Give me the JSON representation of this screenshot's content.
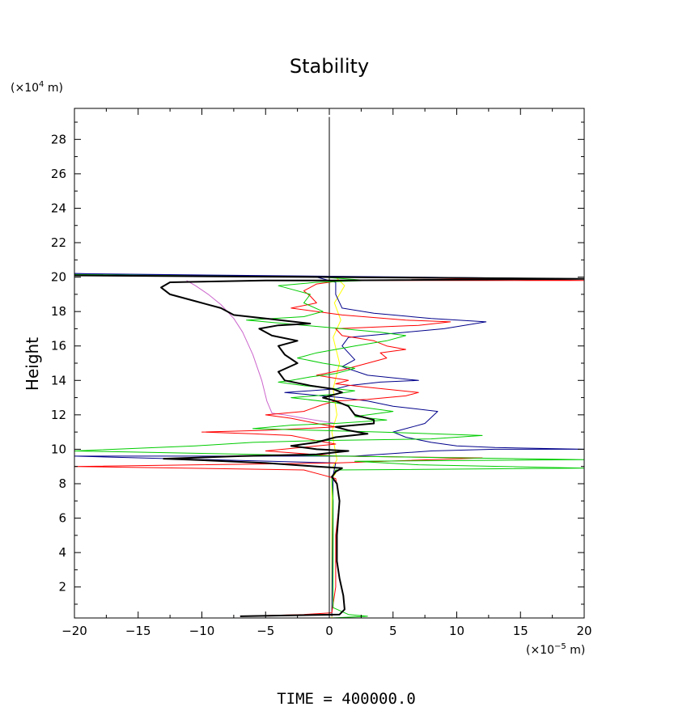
{
  "chart_data": {
    "type": "line",
    "title": "Stability",
    "ylabel": "Height",
    "y_unit_prefix": "(×10",
    "y_unit_exp": "4",
    "y_unit_suffix": " m)",
    "x_unit_prefix": "(×10",
    "x_unit_exp": "−5",
    "x_unit_suffix": " m)",
    "footer": "TIME = 400000.0",
    "xlim": [
      -20,
      20
    ],
    "ylim": [
      0.2,
      29.8
    ],
    "x_ticks": [
      -20,
      -15,
      -10,
      -5,
      0,
      5,
      10,
      15,
      20
    ],
    "x_tick_labels": [
      "−20",
      "−15",
      "−10",
      "−5",
      "0",
      "5",
      "10",
      "15",
      "20"
    ],
    "y_ticks": [
      2,
      4,
      6,
      8,
      10,
      12,
      14,
      16,
      18,
      20,
      22,
      24,
      26,
      28
    ],
    "y_tick_labels": [
      "2",
      "4",
      "6",
      "8",
      "10",
      "12",
      "14",
      "16",
      "18",
      "20",
      "22",
      "24",
      "26",
      "28"
    ],
    "grid": false,
    "series": [
      {
        "color": "#000000",
        "width": 1,
        "points": [
          [
            0,
            0.2
          ],
          [
            0,
            29.3
          ]
        ]
      },
      {
        "color": "#ffff00",
        "width": 1,
        "points": [
          [
            0.2,
            0.2
          ],
          [
            0.2,
            8.3
          ],
          [
            0.5,
            8.6
          ],
          [
            0.3,
            9.0
          ],
          [
            0.6,
            9.4
          ],
          [
            0.2,
            11.0
          ],
          [
            0.6,
            12.0
          ],
          [
            0.3,
            13.5
          ],
          [
            0.8,
            15.0
          ],
          [
            0.3,
            16.5
          ],
          [
            0.9,
            17.5
          ],
          [
            0.4,
            18.5
          ],
          [
            1.2,
            19.5
          ],
          [
            0.5,
            20.0
          ]
        ]
      },
      {
        "color": "#cc66cc",
        "width": 1,
        "points": [
          [
            -11.2,
            19.8
          ],
          [
            -10.5,
            19.5
          ],
          [
            -9.5,
            19.0
          ],
          [
            -8.5,
            18.4
          ],
          [
            -7.5,
            17.6
          ],
          [
            -6.8,
            16.8
          ],
          [
            -6.0,
            15.5
          ],
          [
            -5.3,
            14.0
          ],
          [
            -4.9,
            12.8
          ],
          [
            -4.5,
            12.1
          ],
          [
            -3.5,
            12.0
          ],
          [
            -2.0,
            11.8
          ],
          [
            0.5,
            11.5
          ]
        ]
      },
      {
        "color": "#00008b",
        "width": 1,
        "points": [
          [
            0.2,
            0.3
          ],
          [
            0.3,
            8.5
          ],
          [
            0.5,
            9.2
          ],
          [
            -20,
            9.6
          ],
          [
            2.0,
            9.6
          ],
          [
            8.0,
            9.9
          ],
          [
            13.0,
            10.0
          ],
          [
            20,
            10.0
          ],
          [
            13.0,
            10.1
          ],
          [
            10.0,
            10.2
          ],
          [
            8.0,
            10.4
          ],
          [
            6.0,
            10.7
          ],
          [
            5.0,
            11.0
          ],
          [
            6.5,
            11.3
          ],
          [
            7.5,
            11.5
          ],
          [
            8.5,
            12.2
          ],
          [
            5.0,
            12.5
          ],
          [
            3.0,
            12.8
          ],
          [
            1.0,
            13.0
          ],
          [
            -3.5,
            13.3
          ],
          [
            0.5,
            13.5
          ],
          [
            1.5,
            13.7
          ],
          [
            4.0,
            13.9
          ],
          [
            7.0,
            14.0
          ],
          [
            3.0,
            14.3
          ],
          [
            1.0,
            14.8
          ],
          [
            2.0,
            15.2
          ],
          [
            1.0,
            16.0
          ],
          [
            1.5,
            16.5
          ],
          [
            6.0,
            16.8
          ],
          [
            9.0,
            17.0
          ],
          [
            12.3,
            17.4
          ],
          [
            8.0,
            17.6
          ],
          [
            3.5,
            17.9
          ],
          [
            1.0,
            18.2
          ],
          [
            0.5,
            19.0
          ],
          [
            0.5,
            19.7
          ],
          [
            -1.0,
            20.0
          ],
          [
            -20,
            20.2
          ],
          [
            20,
            19.9
          ]
        ]
      },
      {
        "color": "#ff0000",
        "width": 1,
        "points": [
          [
            -7.0,
            0.3
          ],
          [
            -2.0,
            0.4
          ],
          [
            0.2,
            0.5
          ],
          [
            0.5,
            2.0
          ],
          [
            0.5,
            5.0
          ],
          [
            0.8,
            7.0
          ],
          [
            0.5,
            8.3
          ],
          [
            -0.5,
            8.5
          ],
          [
            -2.0,
            8.8
          ],
          [
            -20,
            9.0
          ],
          [
            0.5,
            9.2
          ],
          [
            12.0,
            9.5
          ],
          [
            0.5,
            9.6
          ],
          [
            -3.0,
            9.8
          ],
          [
            -5.0,
            9.9
          ],
          [
            0.5,
            10.3
          ],
          [
            -1.0,
            10.5
          ],
          [
            -3.0,
            10.8
          ],
          [
            -6.0,
            10.9
          ],
          [
            -10.0,
            11.0
          ],
          [
            -5.0,
            11.1
          ],
          [
            0.5,
            11.3
          ],
          [
            -1.0,
            11.5
          ],
          [
            -3.0,
            11.8
          ],
          [
            -5.0,
            12.0
          ],
          [
            -2.0,
            12.2
          ],
          [
            -0.5,
            12.6
          ],
          [
            0.5,
            12.8
          ],
          [
            3.0,
            12.9
          ],
          [
            6.0,
            13.1
          ],
          [
            7.0,
            13.3
          ],
          [
            3.0,
            13.6
          ],
          [
            0.5,
            13.8
          ],
          [
            1.5,
            14.0
          ],
          [
            -1.0,
            14.3
          ],
          [
            1.0,
            14.6
          ],
          [
            3.0,
            15.0
          ],
          [
            4.5,
            15.3
          ],
          [
            4.0,
            15.6
          ],
          [
            6.0,
            15.8
          ],
          [
            4.5,
            16.0
          ],
          [
            3.5,
            16.3
          ],
          [
            1.0,
            16.6
          ],
          [
            0.5,
            17.0
          ],
          [
            7.0,
            17.2
          ],
          [
            9.5,
            17.4
          ],
          [
            6.0,
            17.5
          ],
          [
            1.0,
            17.8
          ],
          [
            -1.0,
            18.0
          ],
          [
            -3.0,
            18.2
          ],
          [
            -1.0,
            18.5
          ],
          [
            -1.5,
            18.9
          ],
          [
            -2.0,
            19.2
          ],
          [
            -1.0,
            19.6
          ],
          [
            1.0,
            19.8
          ],
          [
            20,
            19.8
          ],
          [
            2.0,
            20.0
          ],
          [
            -20,
            20.1
          ]
        ]
      },
      {
        "color": "#00cc00",
        "width": 1,
        "points": [
          [
            0.2,
            0.2
          ],
          [
            3.0,
            0.3
          ],
          [
            1.5,
            0.4
          ],
          [
            0.3,
            0.8
          ],
          [
            0.3,
            7.0
          ],
          [
            0.2,
            8.3
          ],
          [
            0.5,
            8.8
          ],
          [
            20,
            8.9
          ],
          [
            7.0,
            9.1
          ],
          [
            2.0,
            9.3
          ],
          [
            20,
            9.4
          ],
          [
            1.0,
            9.6
          ],
          [
            -20,
            9.9
          ],
          [
            -10.5,
            10.2
          ],
          [
            -6.0,
            10.4
          ],
          [
            -1.0,
            10.5
          ],
          [
            8.0,
            10.6
          ],
          [
            12.0,
            10.8
          ],
          [
            4.0,
            11.0
          ],
          [
            -6.0,
            11.2
          ],
          [
            -3.0,
            11.4
          ],
          [
            0.5,
            11.5
          ],
          [
            4.5,
            11.7
          ],
          [
            2.0,
            11.9
          ],
          [
            5.0,
            12.2
          ],
          [
            2.0,
            12.5
          ],
          [
            0.5,
            12.7
          ],
          [
            -3.0,
            13.0
          ],
          [
            0.5,
            13.2
          ],
          [
            2.0,
            13.4
          ],
          [
            -2.0,
            13.7
          ],
          [
            -4.0,
            13.9
          ],
          [
            -3.0,
            14.0
          ],
          [
            -1.5,
            14.2
          ],
          [
            0.5,
            14.4
          ],
          [
            2.0,
            14.7
          ],
          [
            -0.5,
            15.0
          ],
          [
            -2.5,
            15.3
          ],
          [
            -1.0,
            15.6
          ],
          [
            2.0,
            16.0
          ],
          [
            4.5,
            16.3
          ],
          [
            6.0,
            16.6
          ],
          [
            4.0,
            16.8
          ],
          [
            1.0,
            17.0
          ],
          [
            -3.5,
            17.3
          ],
          [
            -6.5,
            17.5
          ],
          [
            -2.0,
            17.7
          ],
          [
            -0.5,
            18.0
          ],
          [
            -2.0,
            18.5
          ],
          [
            -1.5,
            19.0
          ],
          [
            -4.0,
            19.5
          ],
          [
            -1.0,
            19.7
          ],
          [
            3.0,
            19.8
          ],
          [
            -0.5,
            20.0
          ],
          [
            -20,
            20.15
          ]
        ]
      },
      {
        "color": "#000000",
        "width": 2,
        "points": [
          [
            -7.0,
            0.3
          ],
          [
            0.8,
            0.4
          ],
          [
            1.2,
            0.7
          ],
          [
            1.1,
            1.5
          ],
          [
            0.8,
            2.5
          ],
          [
            0.6,
            3.5
          ],
          [
            0.6,
            5.0
          ],
          [
            0.7,
            6.0
          ],
          [
            0.8,
            7.0
          ],
          [
            0.6,
            8.0
          ],
          [
            0.2,
            8.4
          ],
          [
            0.5,
            8.7
          ],
          [
            1.0,
            8.9
          ],
          [
            -1.0,
            9.0
          ],
          [
            -5.0,
            9.2
          ],
          [
            -11.0,
            9.4
          ],
          [
            -13.0,
            9.45
          ],
          [
            -7.0,
            9.6
          ],
          [
            -1.0,
            9.7
          ],
          [
            1.5,
            9.9
          ],
          [
            -1.0,
            10.0
          ],
          [
            -3.0,
            10.2
          ],
          [
            -1.0,
            10.4
          ],
          [
            0.5,
            10.7
          ],
          [
            3.0,
            10.9
          ],
          [
            1.5,
            11.1
          ],
          [
            0.5,
            11.3
          ],
          [
            3.5,
            11.5
          ],
          [
            3.5,
            11.7
          ],
          [
            2.0,
            12.0
          ],
          [
            1.5,
            12.5
          ],
          [
            0.5,
            12.8
          ],
          [
            -0.5,
            13.0
          ],
          [
            1.0,
            13.3
          ],
          [
            0.3,
            13.5
          ],
          [
            -1.5,
            13.7
          ],
          [
            -3.5,
            14.0
          ],
          [
            -4.0,
            14.5
          ],
          [
            -2.5,
            15.0
          ],
          [
            -3.5,
            15.5
          ],
          [
            -4.0,
            16.0
          ],
          [
            -2.5,
            16.3
          ],
          [
            -4.5,
            16.6
          ],
          [
            -5.5,
            17.0
          ],
          [
            -4.0,
            17.2
          ],
          [
            -1.5,
            17.3
          ],
          [
            -5.0,
            17.6
          ],
          [
            -7.5,
            17.8
          ],
          [
            -8.5,
            18.2
          ],
          [
            -10.5,
            18.6
          ],
          [
            -12.5,
            19.0
          ],
          [
            -13.2,
            19.4
          ],
          [
            -12.5,
            19.7
          ],
          [
            -5.0,
            19.8
          ],
          [
            0.5,
            19.8
          ],
          [
            20,
            19.9
          ],
          [
            -20,
            20.1
          ]
        ]
      }
    ]
  }
}
